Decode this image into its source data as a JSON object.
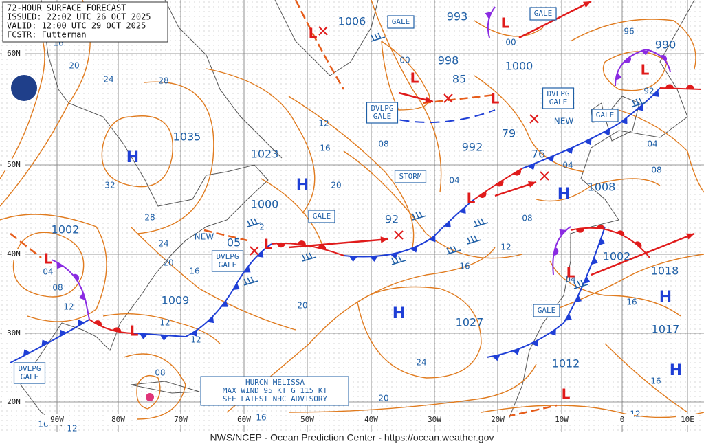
{
  "header": {
    "lines": [
      "72-HOUR SURFACE FORECAST",
      "ISSUED: 22:02 UTC 26 OCT 2025",
      "VALID: 12:00 UTC 29 OCT 2025",
      "FCSTR: Futterman"
    ]
  },
  "footer": "NWS/NCEP - Ocean Prediction Center - https://ocean.weather.gov",
  "advisory": {
    "lines": [
      "HURCN MELISSA",
      "MAX WIND 95 KT G 115 KT",
      "SEE LATEST NHC ADVISORY"
    ]
  },
  "lat_labels": [
    "60N",
    "50N",
    "40N",
    "30N",
    "20N"
  ],
  "lon_labels": [
    "90W",
    "80W",
    "70W",
    "60W",
    "50W",
    "40W",
    "30W",
    "20W",
    "10W",
    "0",
    "10E"
  ],
  "pressure_labels": [
    "1006",
    "993",
    "998",
    "85",
    "1000",
    "992",
    "79",
    "76",
    "990",
    "1008",
    "1035",
    "1023",
    "1000",
    "1002",
    "92",
    "05",
    "1009",
    "1027",
    "1002",
    "1018",
    "1017",
    "1012"
  ],
  "boxed_labels": [
    [
      "GALE"
    ],
    [
      "GALE"
    ],
    [
      "DVLPG",
      "GALE"
    ],
    [
      "DVLPG",
      "GALE"
    ],
    [
      "GALE"
    ],
    [
      "STORM"
    ],
    [
      "GALE"
    ],
    [
      "DVLPG",
      "GALE"
    ],
    [
      "GALE"
    ],
    [
      "DVLPG",
      "GALE"
    ]
  ],
  "isobar_labels": [
    "16",
    "20",
    "24",
    "28",
    "32",
    "28",
    "24",
    "20",
    "16",
    "12",
    "08",
    "04",
    "12",
    "12",
    "08",
    "16",
    "12",
    "16",
    "20",
    "24",
    "20",
    "16",
    "12",
    "08",
    "04",
    "08",
    "12",
    "16",
    "20",
    "00",
    "00",
    "96",
    "92",
    "04",
    "04",
    "08",
    "04",
    "16",
    "16",
    "12",
    "2"
  ],
  "new_labels": [
    "NEW",
    "NEW"
  ],
  "highs": [
    "H",
    "H",
    "H",
    "H",
    "H",
    "H"
  ],
  "lows": [
    "L",
    "L",
    "L",
    "L",
    "L",
    "L",
    "L",
    "L",
    "L",
    "L",
    "L"
  ]
}
